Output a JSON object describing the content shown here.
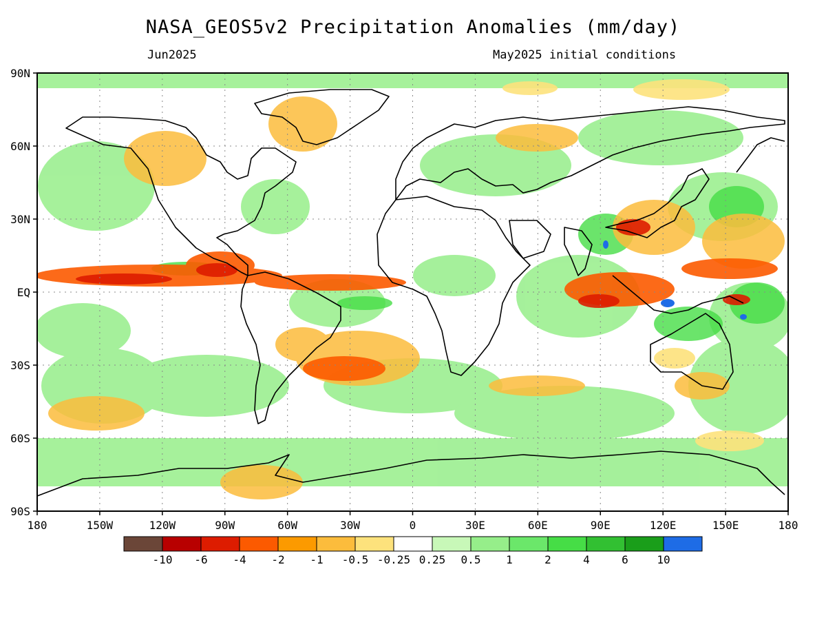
{
  "title": "NASA_GEOS5v2 Precipitation Anomalies (mm/day)",
  "valid_month": "Jun2025",
  "init_label": "May2025 initial conditions",
  "map": {
    "lat_ticks": [
      "90N",
      "60N",
      "30N",
      "EQ",
      "30S",
      "60S",
      "90S"
    ],
    "lon_ticks": [
      "180",
      "150W",
      "120W",
      "90W",
      "60W",
      "30W",
      "0",
      "30E",
      "60E",
      "90E",
      "120E",
      "150E",
      "180"
    ]
  },
  "legend": {
    "colors": [
      "#6b4638",
      "#b80000",
      "#dd1c00",
      "#fc5a00",
      "#fc9a00",
      "#fcbc3c",
      "#fde27c",
      "#ffffff",
      "#c8f8b8",
      "#96ee8a",
      "#6be76a",
      "#46dd46",
      "#32c032",
      "#1a9e1a",
      "#1e6ce6"
    ],
    "labels": [
      "-10",
      "-6",
      "-4",
      "-2",
      "-1",
      "-0.5",
      "-0.25",
      "0.25",
      "0.5",
      "1",
      "2",
      "4",
      "6",
      "10"
    ]
  }
}
